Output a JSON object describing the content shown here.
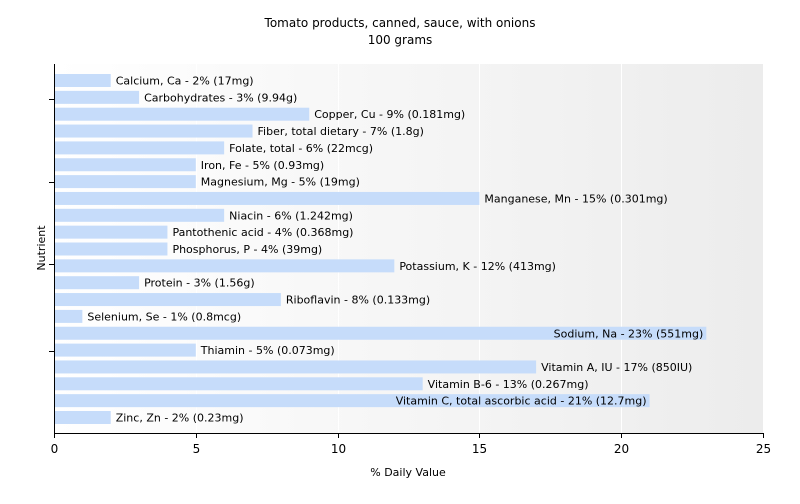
{
  "chart_data": {
    "type": "bar",
    "orientation": "horizontal",
    "title": "Tomato products, canned, sauce, with onions",
    "subtitle": "100 grams",
    "xlabel": "% Daily Value",
    "ylabel": "Nutrient",
    "xlim": [
      0,
      25
    ],
    "xticks": [
      "0",
      "5",
      "10",
      "15",
      "20",
      "25"
    ],
    "grid": "vertical",
    "bar_color": "#c6dcfa",
    "categories": [
      "Calcium, Ca",
      "Carbohydrates",
      "Copper, Cu",
      "Fiber, total dietary",
      "Folate, total",
      "Iron, Fe",
      "Magnesium, Mg",
      "Manganese, Mn",
      "Niacin",
      "Pantothenic acid",
      "Phosphorus, P",
      "Potassium, K",
      "Protein",
      "Riboflavin",
      "Selenium, Se",
      "Sodium, Na",
      "Thiamin",
      "Vitamin A, IU",
      "Vitamin B-6",
      "Vitamin C, total ascorbic acid",
      "Zinc, Zn"
    ],
    "values": [
      2,
      3,
      9,
      7,
      6,
      5,
      5,
      15,
      6,
      4,
      4,
      12,
      3,
      8,
      1,
      23,
      5,
      17,
      13,
      21,
      2
    ],
    "labels": [
      "Calcium, Ca - 2% (17mg)",
      "Carbohydrates - 3% (9.94g)",
      "Copper, Cu - 9% (0.181mg)",
      "Fiber, total dietary - 7% (1.8g)",
      "Folate, total - 6% (22mcg)",
      "Iron, Fe - 5% (0.93mg)",
      "Magnesium, Mg - 5% (19mg)",
      "Manganese, Mn - 15% (0.301mg)",
      "Niacin - 6% (1.242mg)",
      "Pantothenic acid - 4% (0.368mg)",
      "Phosphorus, P - 4% (39mg)",
      "Potassium, K - 12% (413mg)",
      "Protein - 3% (1.56g)",
      "Riboflavin - 8% (0.133mg)",
      "Selenium, Se - 1% (0.8mcg)",
      "Sodium, Na - 23% (551mg)",
      "Thiamin - 5% (0.073mg)",
      "Vitamin A, IU - 17% (850IU)",
      "Vitamin B-6 - 13% (0.267mg)",
      "Vitamin C, total ascorbic acid - 21% (12.7mg)",
      "Zinc, Zn - 2% (0.23mg)"
    ]
  }
}
